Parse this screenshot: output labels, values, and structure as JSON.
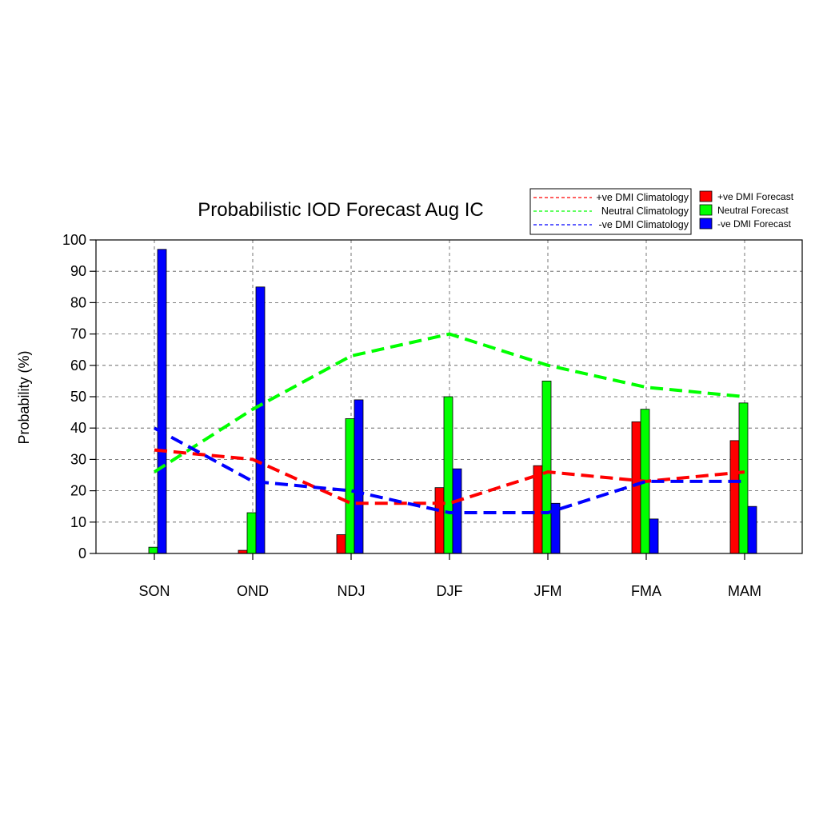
{
  "chart_data": {
    "type": "bar",
    "title": "Probabilistic IOD Forecast  Aug IC",
    "xlabel": "",
    "ylabel": "Probability (%)",
    "ylim": [
      0,
      100
    ],
    "yticks": [
      0,
      10,
      20,
      30,
      40,
      50,
      60,
      70,
      80,
      90,
      100
    ],
    "grid": true,
    "categories": [
      "SON",
      "OND",
      "NDJ",
      "DJF",
      "JFM",
      "FMA",
      "MAM"
    ],
    "series": [
      {
        "name": "+ve DMI Forecast",
        "color": "#ff0000",
        "values": [
          0,
          1,
          6,
          21,
          28,
          42,
          36
        ]
      },
      {
        "name": "Neutral Forecast",
        "color": "#00ff00",
        "values": [
          2,
          13,
          43,
          50,
          55,
          46,
          48
        ]
      },
      {
        "name": "-ve DMI Forecast",
        "color": "#0000ff",
        "values": [
          97,
          85,
          49,
          27,
          16,
          11,
          15
        ]
      }
    ],
    "climatology": [
      {
        "name": "+ve DMI Climatology",
        "color": "#ff0000",
        "values": [
          33,
          30,
          16,
          16,
          26,
          23,
          26
        ]
      },
      {
        "name": "Neutral Climatology",
        "color": "#00ff00",
        "values": [
          26,
          46,
          63,
          70,
          60,
          53,
          50
        ]
      },
      {
        "name": "-ve DMI Climatology",
        "color": "#0000ff",
        "values": [
          40,
          23,
          20,
          13,
          13,
          23,
          23
        ]
      }
    ],
    "legend": {
      "lines_position": "top-right",
      "bars_position": "top-right"
    }
  }
}
